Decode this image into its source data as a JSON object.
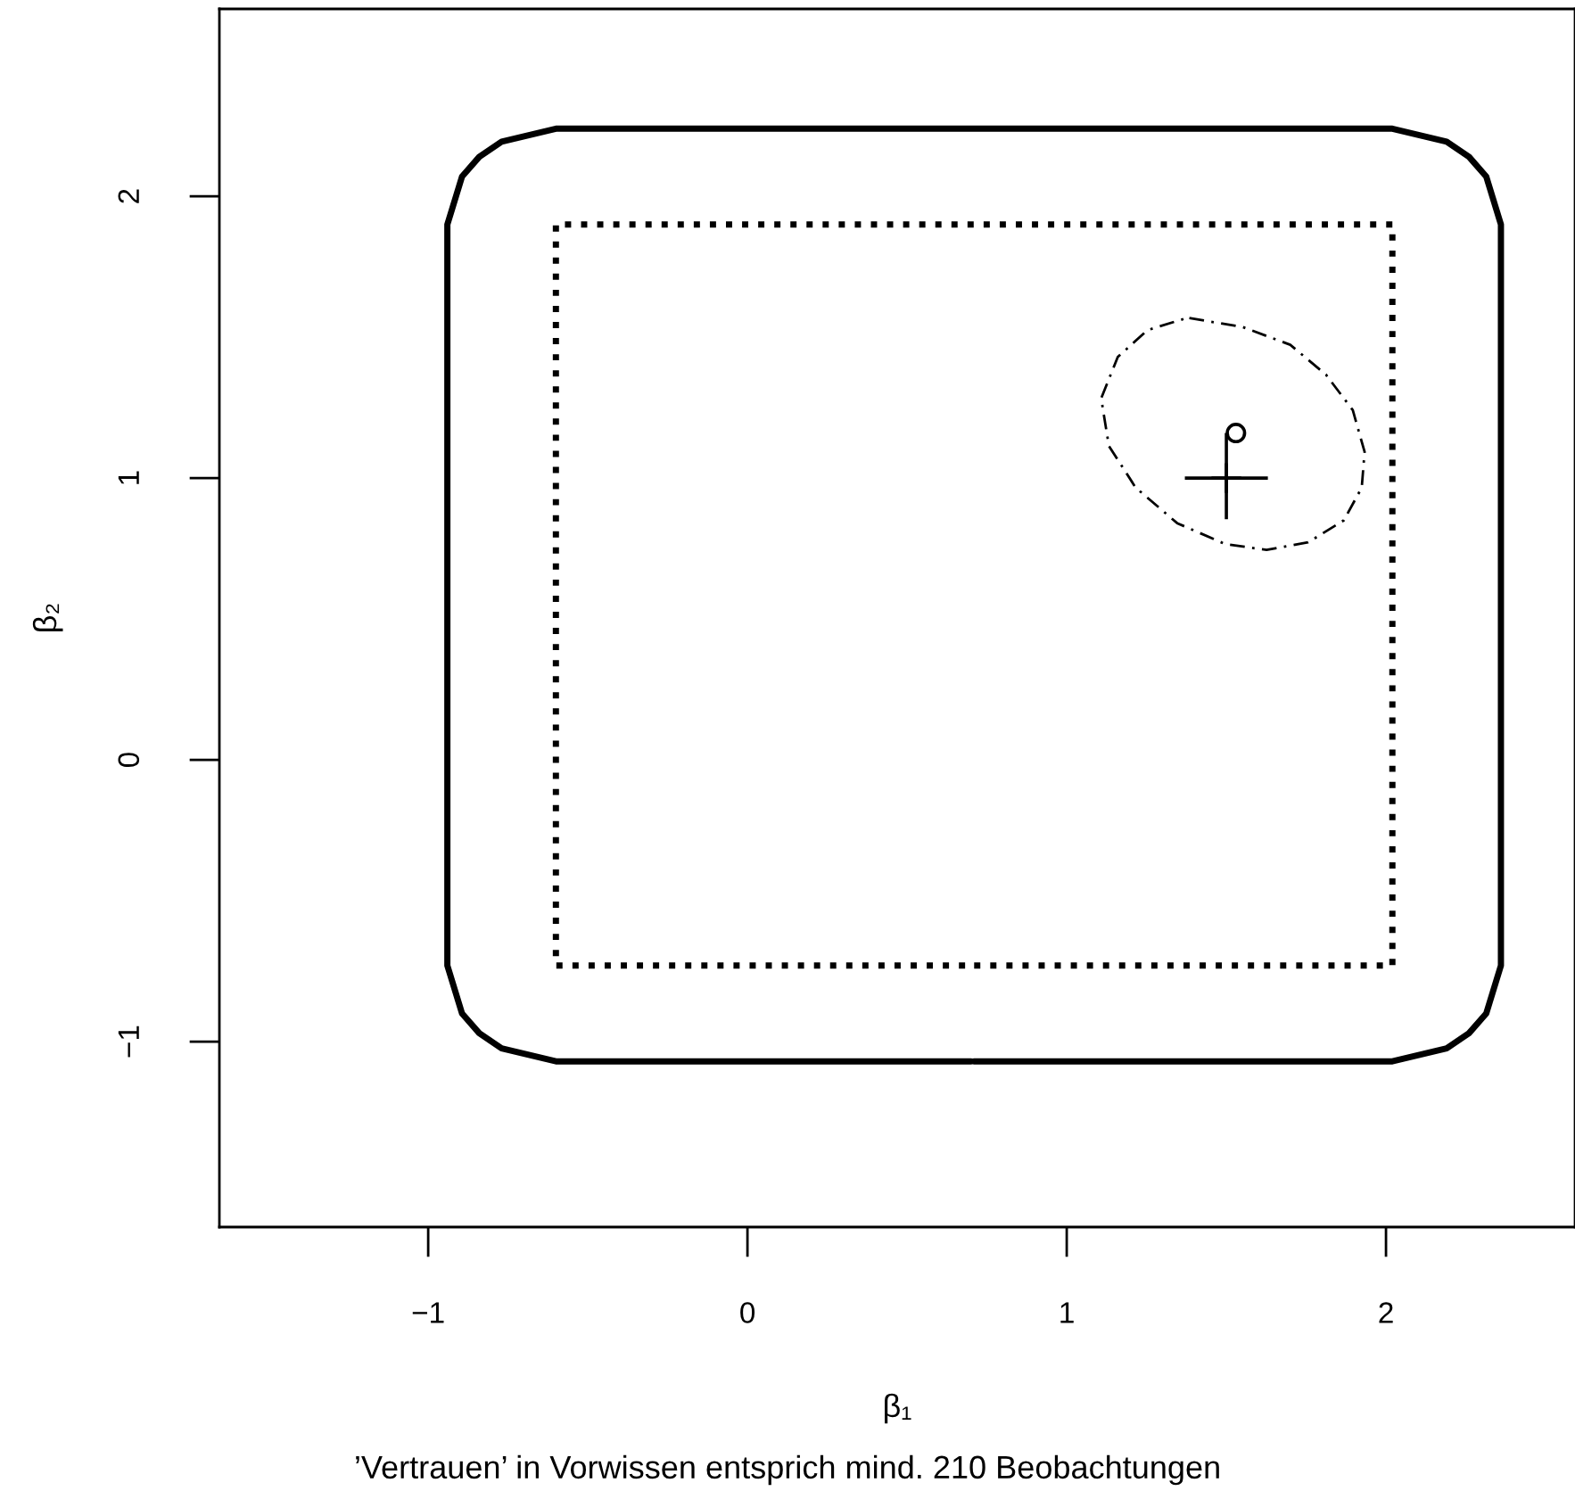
{
  "chart_data": {
    "type": "line",
    "xlabel": "β₁",
    "ylabel": "β₂",
    "annotations": [
      "’Vertrauen’ in Vorwissen entsprich mind. 210 Beobachtungen"
    ],
    "xlim": [
      -1.654,
      2.592
    ],
    "ylim": [
      -1.658,
      2.665
    ],
    "xticks": [
      {
        "value": -1,
        "label": "−1"
      },
      0,
      1,
      2
    ],
    "yticks": [
      {
        "value": -1,
        "label": "−1"
      },
      0,
      1,
      2
    ],
    "series": [
      {
        "color": "#000000",
        "line_style": "solid",
        "x": [
          0.71,
          2.02,
          2.19,
          2.26,
          2.314,
          2.36,
          2.36,
          2.314,
          2.26,
          2.19,
          2.02,
          -0.6,
          -0.77,
          -0.84,
          -0.894,
          -0.94,
          -0.94,
          -0.894,
          -0.84,
          -0.77,
          -0.6,
          0.7
        ],
        "values": [
          -1.07,
          -1.07,
          -1.024,
          -0.97,
          -0.9,
          -0.73,
          1.9,
          2.07,
          2.14,
          2.194,
          2.24,
          2.24,
          2.194,
          2.14,
          2.07,
          1.9,
          -0.73,
          -0.9,
          -0.97,
          -1.024,
          -1.07,
          -1.07
        ]
      },
      {
        "color": "#000000",
        "line_style": "dotted",
        "x": [
          0.71,
          2.02,
          2.02,
          -0.6,
          -0.6,
          0.7
        ],
        "values": [
          -0.73,
          -0.73,
          1.9,
          1.9,
          -0.73,
          -0.73
        ]
      },
      {
        "color": "#000000",
        "line_style": "dashed",
        "x": [
          1.384,
          1.551,
          1.7,
          1.812,
          1.896,
          1.933,
          1.924,
          1.868,
          1.756,
          1.626,
          1.496,
          1.346,
          1.216,
          1.132,
          1.108,
          1.16,
          1.253,
          1.37
        ],
        "values": [
          1.568,
          1.536,
          1.473,
          1.367,
          1.241,
          1.093,
          0.966,
          0.85,
          0.772,
          0.745,
          0.766,
          0.84,
          0.966,
          1.114,
          1.283,
          1.43,
          1.525,
          1.566
        ]
      },
      {
        "type": "scatter",
        "color": "#000000",
        "marker": "cross",
        "x": [
          1.5
        ],
        "values": [
          1.0
        ],
        "errors": [
          [
            0.854,
            1.16
          ]
        ],
        "xerrors": [
          [
            1.37,
            1.63
          ]
        ]
      },
      {
        "type": "scatter",
        "color": "#000000",
        "marker": "circle",
        "x": [
          1.53
        ],
        "values": [
          1.16
        ]
      }
    ]
  }
}
